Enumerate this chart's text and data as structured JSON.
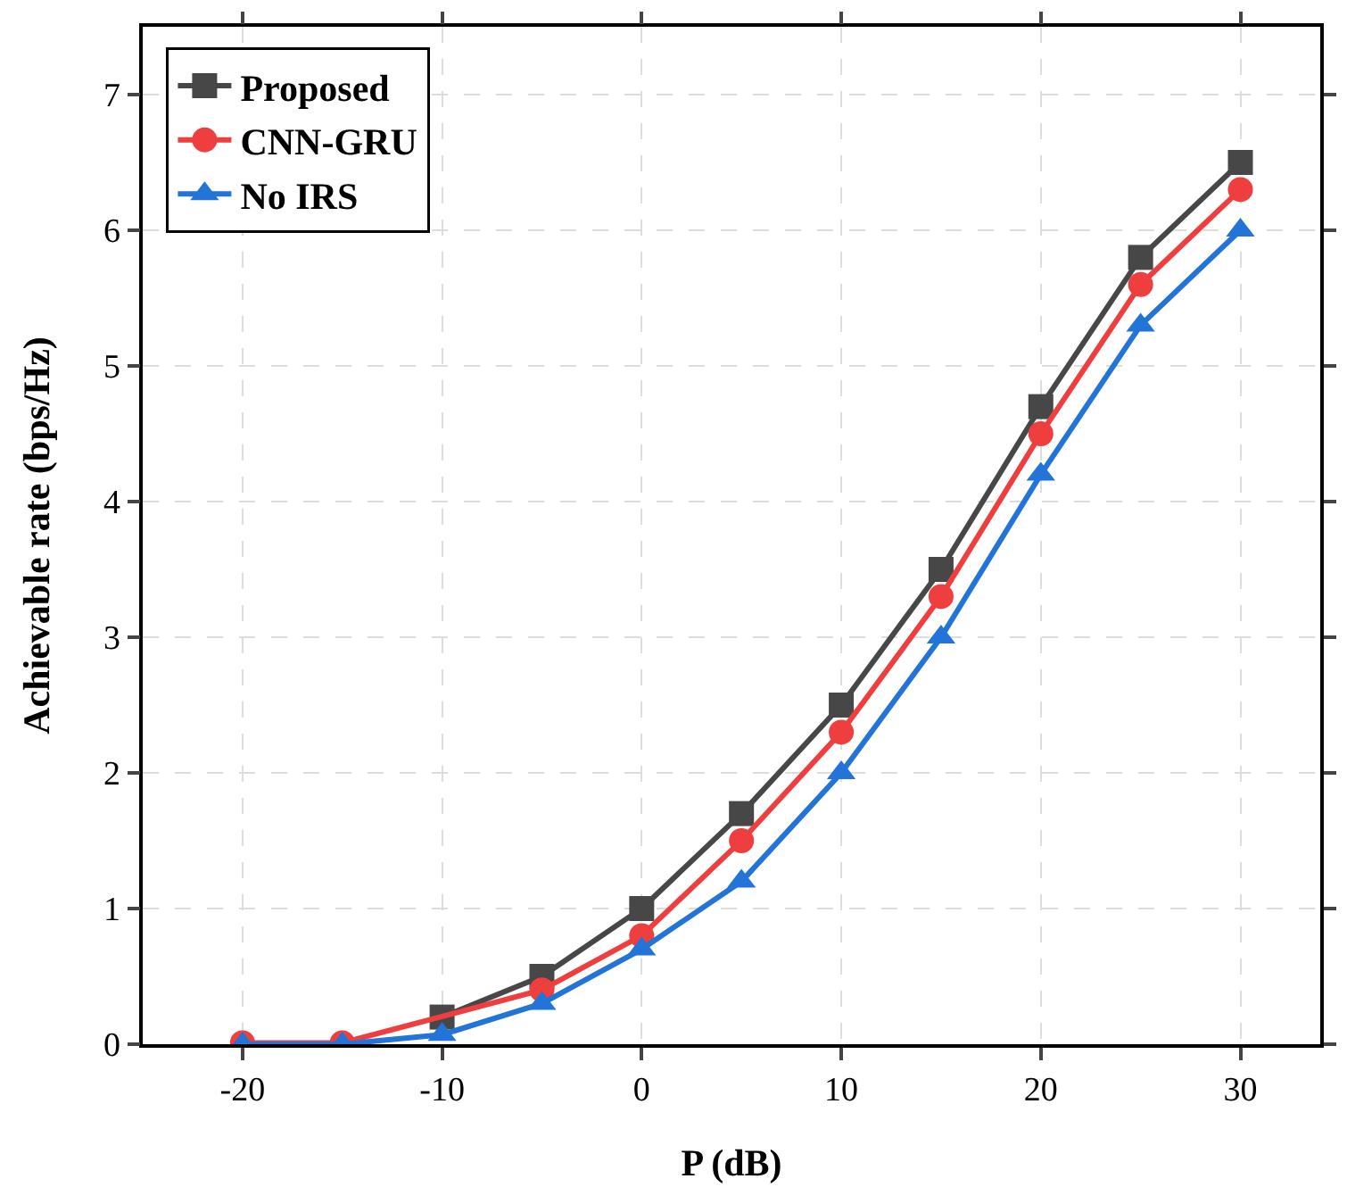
{
  "chart_data": {
    "type": "line",
    "xlabel": "P (dB)",
    "ylabel": "Achievable rate (bps/Hz)",
    "x": [
      -20,
      -15,
      -10,
      -5,
      0,
      5,
      10,
      15,
      20,
      25,
      30
    ],
    "series": [
      {
        "name": "Proposed",
        "color": "#474747",
        "marker": "square",
        "values": [
          null,
          null,
          0.2,
          0.5,
          1.0,
          1.7,
          2.5,
          3.5,
          4.7,
          5.8,
          6.5
        ]
      },
      {
        "name": "CNN-GRU",
        "color": "#ef3e3e",
        "marker": "circle",
        "values": [
          0.01,
          0.01,
          null,
          0.4,
          0.8,
          1.5,
          2.3,
          3.3,
          4.5,
          5.6,
          6.3
        ]
      },
      {
        "name": "No IRS",
        "color": "#2374d8",
        "marker": "triangle",
        "values": [
          0,
          0,
          0.07,
          0.3,
          0.7,
          1.2,
          2.0,
          3.0,
          4.2,
          5.3,
          6.0
        ]
      }
    ],
    "xlim": [
      -25,
      34
    ],
    "xticks": [
      -20,
      -10,
      0,
      10,
      20,
      30
    ],
    "ylim": [
      0,
      7.5
    ],
    "yticks": [
      0,
      1,
      2,
      3,
      4,
      5,
      6,
      7
    ],
    "grid": true,
    "legend": "top left",
    "line_style": "solid"
  }
}
